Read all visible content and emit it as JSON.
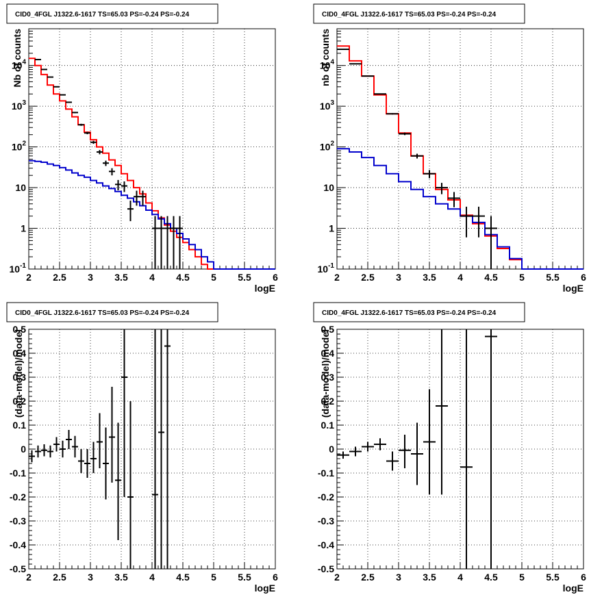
{
  "chart_data": [
    {
      "type": "line",
      "panel": "top-left",
      "title": "CID0_4FGL J1322.6-1617 TS=65.03 PS=-0.24 PS=-0.24",
      "xlabel": "logE",
      "ylabel": "Nb of counts",
      "xlim": [
        2,
        6
      ],
      "ylim": [
        0.1,
        80000
      ],
      "yscale": "log",
      "grid": true,
      "x_ticks": [
        "2",
        "2.5",
        "3",
        "3.5",
        "4",
        "4.5",
        "5",
        "5.5",
        "6"
      ],
      "y_ticks": [
        {
          "v": 0.1,
          "base": "10",
          "exp": "-1"
        },
        {
          "v": 1,
          "base": "1",
          "exp": ""
        },
        {
          "v": 10,
          "base": "10",
          "exp": ""
        },
        {
          "v": 100,
          "base": "10",
          "exp": "2"
        },
        {
          "v": 1000,
          "base": "10",
          "exp": "3"
        },
        {
          "v": 10000,
          "base": "10",
          "exp": "4"
        }
      ],
      "bin_edges": [
        2,
        2.1,
        2.2,
        2.3,
        2.4,
        2.5,
        2.6,
        2.7,
        2.8,
        2.9,
        3,
        3.1,
        3.2,
        3.3,
        3.4,
        3.5,
        3.6,
        3.7,
        3.8,
        3.9,
        4,
        4.1,
        4.2,
        4.3,
        4.4,
        4.5,
        4.6,
        4.7,
        4.8,
        4.9,
        5,
        5.1,
        5.2,
        5.3,
        5.4,
        5.5,
        5.6,
        5.7,
        5.8,
        5.9,
        6
      ],
      "series": [
        {
          "color": "#ff0000",
          "values": [
            15000,
            10000,
            6000,
            3300,
            2000,
            1350,
            850,
            550,
            350,
            230,
            150,
            100,
            70,
            48,
            35,
            22,
            15,
            10,
            7,
            4.2,
            2.7,
            1.8,
            1.2,
            0.85,
            0.6,
            0.45,
            0.3,
            0.2,
            0.13,
            0.1,
            0.1,
            0.1,
            0.1,
            0.1,
            0.1,
            0.1,
            0.1,
            0.1,
            0.1,
            0.1
          ]
        },
        {
          "color": "#0000cc",
          "values": [
            46,
            44,
            42,
            38,
            35,
            31,
            27,
            23,
            20,
            18,
            15,
            13,
            11,
            9.5,
            8,
            6.5,
            5.5,
            4.5,
            3.6,
            2.8,
            2.2,
            1.7,
            1.3,
            1,
            0.75,
            0.55,
            0.4,
            0.3,
            0.2,
            0.15,
            0.1,
            0.1,
            0.1,
            0.1,
            0.1,
            0.1,
            0.1,
            0.1,
            0.1,
            0.1
          ]
        }
      ],
      "points": [
        {
          "x": 2.15,
          "y": 14000,
          "xerr": 0.05,
          "ylo": 13800,
          "yhi": 14200
        },
        {
          "x": 2.25,
          "y": 8000,
          "xerr": 0.05,
          "ylo": 7900,
          "yhi": 8100
        },
        {
          "x": 2.35,
          "y": 5200,
          "xerr": 0.05,
          "ylo": 5120,
          "yhi": 5280
        },
        {
          "x": 2.45,
          "y": 3000,
          "xerr": 0.05,
          "ylo": 2950,
          "yhi": 3050
        },
        {
          "x": 2.55,
          "y": 1900,
          "xerr": 0.05,
          "ylo": 1860,
          "yhi": 1940
        },
        {
          "x": 2.65,
          "y": 1250,
          "xerr": 0.05,
          "ylo": 1220,
          "yhi": 1280
        },
        {
          "x": 2.75,
          "y": 700,
          "xerr": 0.05,
          "ylo": 675,
          "yhi": 725
        },
        {
          "x": 2.85,
          "y": 350,
          "xerr": 0.05,
          "ylo": 330,
          "yhi": 370
        },
        {
          "x": 2.95,
          "y": 220,
          "xerr": 0.05,
          "ylo": 205,
          "yhi": 235
        },
        {
          "x": 3.05,
          "y": 130,
          "xerr": 0.05,
          "ylo": 119,
          "yhi": 141
        },
        {
          "x": 3.15,
          "y": 75,
          "xerr": 0.05,
          "ylo": 66,
          "yhi": 84
        },
        {
          "x": 3.25,
          "y": 40,
          "xerr": 0.05,
          "ylo": 34,
          "yhi": 46
        },
        {
          "x": 3.35,
          "y": 25,
          "xerr": 0.05,
          "ylo": 20,
          "yhi": 30
        },
        {
          "x": 3.45,
          "y": 12,
          "xerr": 0.05,
          "ylo": 8.6,
          "yhi": 15.4
        },
        {
          "x": 3.55,
          "y": 11,
          "xerr": 0.05,
          "ylo": 7.8,
          "yhi": 14.2
        },
        {
          "x": 3.65,
          "y": 3,
          "xerr": 0.05,
          "ylo": 1.5,
          "yhi": 4.8
        },
        {
          "x": 3.75,
          "y": 6,
          "xerr": 0.05,
          "ylo": 3.6,
          "yhi": 8.4
        },
        {
          "x": 3.85,
          "y": 6,
          "xerr": 0.05,
          "ylo": 3.6,
          "yhi": 8.4
        },
        {
          "x": 4.05,
          "y": 1,
          "xerr": 0.05,
          "ylo": 0.1,
          "yhi": 2
        },
        {
          "x": 4.15,
          "y": 1,
          "xerr": 0.05,
          "ylo": 0.1,
          "yhi": 2
        },
        {
          "x": 4.25,
          "y": 1,
          "xerr": 0.05,
          "ylo": 0.1,
          "yhi": 2
        },
        {
          "x": 4.35,
          "y": 1,
          "xerr": 0.05,
          "ylo": 0.1,
          "yhi": 2
        },
        {
          "x": 4.45,
          "y": 1,
          "xerr": 0.05,
          "ylo": 0.1,
          "yhi": 2
        }
      ]
    },
    {
      "type": "line",
      "panel": "top-right",
      "title": "CID0_4FGL J1322.6-1617 TS=65.03 PS=-0.24 PS=-0.24",
      "xlabel": "logE",
      "ylabel": "nb of counts",
      "xlim": [
        2,
        6
      ],
      "ylim": [
        0.1,
        80000
      ],
      "yscale": "log",
      "grid": true,
      "x_ticks": [
        "2",
        "2.5",
        "3",
        "3.5",
        "4",
        "4.5",
        "5",
        "5.5",
        "6"
      ],
      "y_ticks": [
        {
          "v": 0.1,
          "base": "10",
          "exp": "-1"
        },
        {
          "v": 1,
          "base": "1",
          "exp": ""
        },
        {
          "v": 10,
          "base": "10",
          "exp": ""
        },
        {
          "v": 100,
          "base": "10",
          "exp": "2"
        },
        {
          "v": 1000,
          "base": "10",
          "exp": "3"
        },
        {
          "v": 10000,
          "base": "10",
          "exp": "4"
        }
      ],
      "bin_edges": [
        2,
        2.2,
        2.4,
        2.6,
        2.8,
        3,
        3.2,
        3.4,
        3.6,
        3.8,
        4,
        4.2,
        4.4,
        4.6,
        4.8,
        5,
        5.2,
        5.4,
        5.6,
        5.8,
        6
      ],
      "series": [
        {
          "color": "#ff0000",
          "values": [
            30000,
            13000,
            5500,
            1900,
            650,
            220,
            60,
            22,
            9,
            5,
            2.1,
            1.3,
            0.65,
            0.32,
            0.17,
            0.1,
            0.1,
            0.1,
            0.1,
            0.1
          ]
        },
        {
          "color": "#0000cc",
          "values": [
            90,
            75,
            55,
            35,
            22,
            14,
            9,
            6,
            4,
            3,
            2,
            1.4,
            0.7,
            0.35,
            0.18,
            0.1,
            0.1,
            0.1,
            0.1,
            0.1
          ]
        }
      ],
      "points": [
        {
          "x": 2.1,
          "y": 25000,
          "xerr": 0.1,
          "ylo": 24800,
          "yhi": 25200
        },
        {
          "x": 2.3,
          "y": 11000,
          "xerr": 0.1,
          "ylo": 10900,
          "yhi": 11100
        },
        {
          "x": 2.5,
          "y": 5500,
          "xerr": 0.1,
          "ylo": 5420,
          "yhi": 5580
        },
        {
          "x": 2.7,
          "y": 2000,
          "xerr": 0.1,
          "ylo": 1955,
          "yhi": 2045
        },
        {
          "x": 2.9,
          "y": 650,
          "xerr": 0.1,
          "ylo": 625,
          "yhi": 675
        },
        {
          "x": 3.1,
          "y": 210,
          "xerr": 0.1,
          "ylo": 195,
          "yhi": 225
        },
        {
          "x": 3.3,
          "y": 60,
          "xerr": 0.1,
          "ylo": 52,
          "yhi": 68
        },
        {
          "x": 3.5,
          "y": 22,
          "xerr": 0.1,
          "ylo": 17,
          "yhi": 27
        },
        {
          "x": 3.7,
          "y": 10,
          "xerr": 0.1,
          "ylo": 6.9,
          "yhi": 13.1
        },
        {
          "x": 3.9,
          "y": 5.5,
          "xerr": 0.1,
          "ylo": 3.3,
          "yhi": 7.8
        },
        {
          "x": 4.1,
          "y": 2,
          "xerr": 0.1,
          "ylo": 0.6,
          "yhi": 3.4
        },
        {
          "x": 4.3,
          "y": 2,
          "xerr": 0.1,
          "ylo": 0.6,
          "yhi": 3.4
        },
        {
          "x": 4.5,
          "y": 1,
          "xerr": 0.1,
          "ylo": 0.1,
          "yhi": 2
        }
      ]
    },
    {
      "type": "scatter",
      "panel": "bottom-left",
      "title": "CID0_4FGL J1322.6-1617 TS=65.03 PS=-0.24 PS=-0.24",
      "xlabel": "logE",
      "ylabel": "(data-model)/model",
      "xlim": [
        2,
        6
      ],
      "ylim": [
        -0.5,
        0.5
      ],
      "yscale": "linear",
      "grid": true,
      "x_ticks": [
        "2",
        "2.5",
        "3",
        "3.5",
        "4",
        "4.5",
        "5",
        "5.5",
        "6"
      ],
      "y_ticks": [
        "-0.5",
        "-0.4",
        "-0.3",
        "-0.2",
        "-0.1",
        "0",
        "0.1",
        "0.2",
        "0.3",
        "0.4",
        "0.5"
      ],
      "points": [
        {
          "x": 2.05,
          "y": -0.03,
          "xerr": 0.05,
          "ylo": -0.055,
          "yhi": -0.005
        },
        {
          "x": 2.15,
          "y": -0.01,
          "xerr": 0.05,
          "ylo": -0.035,
          "yhi": 0.015
        },
        {
          "x": 2.25,
          "y": -0.005,
          "xerr": 0.05,
          "ylo": -0.03,
          "yhi": 0.02
        },
        {
          "x": 2.35,
          "y": -0.01,
          "xerr": 0.05,
          "ylo": -0.035,
          "yhi": 0.015
        },
        {
          "x": 2.45,
          "y": 0.02,
          "xerr": 0.05,
          "ylo": -0.01,
          "yhi": 0.05
        },
        {
          "x": 2.55,
          "y": 0,
          "xerr": 0.05,
          "ylo": -0.035,
          "yhi": 0.035
        },
        {
          "x": 2.65,
          "y": 0.04,
          "xerr": 0.05,
          "ylo": 0,
          "yhi": 0.08
        },
        {
          "x": 2.75,
          "y": 0.01,
          "xerr": 0.05,
          "ylo": -0.035,
          "yhi": 0.055
        },
        {
          "x": 2.85,
          "y": -0.05,
          "xerr": 0.05,
          "ylo": -0.1,
          "yhi": 0
        },
        {
          "x": 2.95,
          "y": -0.06,
          "xerr": 0.05,
          "ylo": -0.12,
          "yhi": 0
        },
        {
          "x": 3.05,
          "y": -0.04,
          "xerr": 0.05,
          "ylo": -0.1,
          "yhi": 0.03
        },
        {
          "x": 3.15,
          "y": 0.03,
          "xerr": 0.05,
          "ylo": -0.08,
          "yhi": 0.15
        },
        {
          "x": 3.25,
          "y": -0.06,
          "xerr": 0.05,
          "ylo": -0.21,
          "yhi": 0.09
        },
        {
          "x": 3.35,
          "y": 0.05,
          "xerr": 0.05,
          "ylo": -0.14,
          "yhi": 0.26
        },
        {
          "x": 3.45,
          "y": -0.13,
          "xerr": 0.05,
          "ylo": -0.38,
          "yhi": 0.11
        },
        {
          "x": 3.55,
          "y": 0.3,
          "xerr": 0.05,
          "ylo": -0.2,
          "yhi": 0.5
        },
        {
          "x": 3.65,
          "y": -0.2,
          "xerr": 0.05,
          "ylo": -0.5,
          "yhi": 0.2
        },
        {
          "x": 4.05,
          "y": -0.19,
          "xerr": 0.05,
          "ylo": -0.5,
          "yhi": 0.5
        },
        {
          "x": 4.15,
          "y": 0.07,
          "xerr": 0.05,
          "ylo": -0.5,
          "yhi": 0.5
        },
        {
          "x": 4.25,
          "y": 0.43,
          "xerr": 0.05,
          "ylo": -0.5,
          "yhi": 0.5
        }
      ]
    },
    {
      "type": "scatter",
      "panel": "bottom-right",
      "title": "CID0_4FGL J1322.6-1617 TS=65.03 PS=-0.24 PS=-0.24",
      "xlabel": "logE",
      "ylabel": "(data-model)/model",
      "xlim": [
        2,
        6
      ],
      "ylim": [
        -0.5,
        0.5
      ],
      "yscale": "linear",
      "grid": true,
      "x_ticks": [
        "2",
        "2.5",
        "3",
        "3.5",
        "4",
        "4.5",
        "5",
        "5.5",
        "6"
      ],
      "y_ticks": [
        "-0.5",
        "-0.4",
        "-0.3",
        "-0.2",
        "-0.1",
        "0",
        "0.1",
        "0.2",
        "0.3",
        "0.4",
        "0.5"
      ],
      "points": [
        {
          "x": 2.1,
          "y": -0.025,
          "xerr": 0.1,
          "ylo": -0.04,
          "yhi": -0.01
        },
        {
          "x": 2.3,
          "y": -0.01,
          "xerr": 0.1,
          "ylo": -0.03,
          "yhi": 0.01
        },
        {
          "x": 2.5,
          "y": 0.01,
          "xerr": 0.1,
          "ylo": -0.01,
          "yhi": 0.03
        },
        {
          "x": 2.7,
          "y": 0.02,
          "xerr": 0.1,
          "ylo": -0.005,
          "yhi": 0.045
        },
        {
          "x": 2.9,
          "y": -0.05,
          "xerr": 0.1,
          "ylo": -0.09,
          "yhi": -0.01
        },
        {
          "x": 3.1,
          "y": -0.005,
          "xerr": 0.1,
          "ylo": -0.08,
          "yhi": 0.06
        },
        {
          "x": 3.3,
          "y": -0.02,
          "xerr": 0.1,
          "ylo": -0.15,
          "yhi": 0.11
        },
        {
          "x": 3.5,
          "y": 0.03,
          "xerr": 0.1,
          "ylo": -0.19,
          "yhi": 0.25
        },
        {
          "x": 3.7,
          "y": 0.18,
          "xerr": 0.1,
          "ylo": -0.19,
          "yhi": 0.5
        },
        {
          "x": 4.1,
          "y": -0.075,
          "xerr": 0.1,
          "ylo": -0.5,
          "yhi": 0.5
        },
        {
          "x": 4.5,
          "y": 0.47,
          "xerr": 0.1,
          "ylo": -0.5,
          "yhi": 0.5
        }
      ]
    }
  ]
}
